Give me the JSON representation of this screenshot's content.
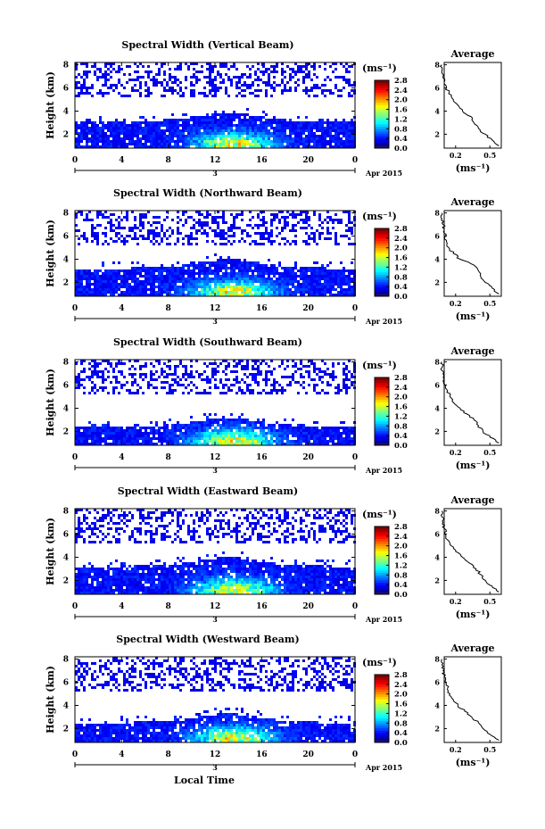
{
  "figure": {
    "time_axis_label": "Local Time",
    "date_label": "Apr 2015",
    "day_label": "3",
    "colorbar_unit": "(ms⁻¹)",
    "average_title": "Average",
    "average_xlabel": "(ms⁻¹)",
    "height_label": "Height (km)"
  },
  "chart_data": [
    {
      "type": "heatmap",
      "title": "Spectral Width (Vertical Beam)",
      "xlabel": "Local Time",
      "ylabel": "Height (km)",
      "x_ticks": [
        "0",
        "4",
        "8",
        "12",
        "16",
        "20",
        "0"
      ],
      "xlim": [
        0,
        24
      ],
      "y_ticks": [
        "2",
        "4",
        "6",
        "8"
      ],
      "ylim": [
        0.8,
        8.2
      ],
      "colorbar": {
        "unit": "(ms⁻¹)",
        "ticks": [
          "0.0",
          "0.4",
          "0.8",
          "1.2",
          "1.6",
          "2.0",
          "2.4",
          "2.8"
        ],
        "range": [
          0.0,
          2.8
        ]
      },
      "profile": {
        "title": "Average",
        "xlabel": "(ms⁻¹)",
        "x_ticks": [
          "0.2",
          "0.5"
        ],
        "y_ticks": [
          "2",
          "4",
          "6",
          "8"
        ],
        "height": [
          1.0,
          1.5,
          2.0,
          2.5,
          3.0,
          3.5,
          4.0,
          4.5,
          5.0,
          5.5,
          6.0,
          6.5,
          7.0,
          7.5,
          8.0
        ],
        "width": [
          0.58,
          0.52,
          0.46,
          0.4,
          0.36,
          0.34,
          0.26,
          0.22,
          0.18,
          0.14,
          0.12,
          0.1,
          0.09,
          0.08,
          0.08
        ]
      },
      "layer_top_km": 3.5
    },
    {
      "type": "heatmap",
      "title": "Spectral Width (Northward Beam)",
      "xlabel": "Local Time",
      "ylabel": "Height (km)",
      "x_ticks": [
        "0",
        "4",
        "8",
        "12",
        "16",
        "20",
        "0"
      ],
      "xlim": [
        0,
        24
      ],
      "y_ticks": [
        "2",
        "4",
        "6",
        "8"
      ],
      "ylim": [
        0.8,
        8.2
      ],
      "colorbar": {
        "unit": "(ms⁻¹)",
        "ticks": [
          "0.0",
          "0.4",
          "0.8",
          "1.2",
          "1.6",
          "2.0",
          "2.4",
          "2.8"
        ],
        "range": [
          0.0,
          2.8
        ]
      },
      "profile": {
        "title": "Average",
        "xlabel": "(ms⁻¹)",
        "x_ticks": [
          "0.2",
          "0.5"
        ],
        "y_ticks": [
          "2",
          "4",
          "6",
          "8"
        ],
        "height": [
          1.0,
          1.5,
          2.0,
          2.5,
          3.0,
          3.5,
          4.0,
          4.5,
          5.0,
          5.5,
          6.0,
          6.5,
          7.0,
          7.5,
          8.0
        ],
        "width": [
          0.58,
          0.52,
          0.46,
          0.42,
          0.4,
          0.36,
          0.24,
          0.18,
          0.14,
          0.12,
          0.11,
          0.1,
          0.09,
          0.08,
          0.08
        ]
      },
      "layer_top_km": 3.6
    },
    {
      "type": "heatmap",
      "title": "Spectral Width (Southward Beam)",
      "xlabel": "Local Time",
      "ylabel": "Height (km)",
      "x_ticks": [
        "0",
        "4",
        "8",
        "12",
        "16",
        "20",
        "0"
      ],
      "xlim": [
        0,
        24
      ],
      "y_ticks": [
        "2",
        "4",
        "6",
        "8"
      ],
      "ylim": [
        0.8,
        8.2
      ],
      "colorbar": {
        "unit": "(ms⁻¹)",
        "ticks": [
          "0.0",
          "0.4",
          "0.8",
          "1.2",
          "1.6",
          "2.0",
          "2.4",
          "2.8"
        ],
        "range": [
          0.0,
          2.8
        ]
      },
      "profile": {
        "title": "Average",
        "xlabel": "(ms⁻¹)",
        "x_ticks": [
          "0.2",
          "0.5"
        ],
        "y_ticks": [
          "2",
          "4",
          "6",
          "8"
        ],
        "height": [
          1.0,
          1.5,
          2.0,
          2.5,
          3.0,
          3.5,
          4.0,
          4.5,
          5.0,
          5.5,
          6.0,
          6.5,
          7.0,
          7.5,
          8.0
        ],
        "width": [
          0.58,
          0.5,
          0.44,
          0.4,
          0.36,
          0.3,
          0.24,
          0.18,
          0.15,
          0.13,
          0.11,
          0.1,
          0.09,
          0.08,
          0.08
        ]
      },
      "layer_top_km": 2.8
    },
    {
      "type": "heatmap",
      "title": "Spectral Width (Eastward Beam)",
      "xlabel": "Local Time",
      "ylabel": "Height (km)",
      "x_ticks": [
        "0",
        "4",
        "8",
        "12",
        "16",
        "20",
        "0"
      ],
      "xlim": [
        0,
        24
      ],
      "y_ticks": [
        "2",
        "4",
        "6",
        "8"
      ],
      "ylim": [
        0.8,
        8.2
      ],
      "colorbar": {
        "unit": "(ms⁻¹)",
        "ticks": [
          "0.0",
          "0.4",
          "0.8",
          "1.2",
          "1.6",
          "2.0",
          "2.4",
          "2.8"
        ],
        "range": [
          0.0,
          2.8
        ]
      },
      "profile": {
        "title": "Average",
        "xlabel": "(ms⁻¹)",
        "x_ticks": [
          "0.2",
          "0.5"
        ],
        "y_ticks": [
          "2",
          "4",
          "6",
          "8"
        ],
        "height": [
          1.0,
          1.5,
          2.0,
          2.5,
          3.0,
          3.5,
          4.0,
          4.5,
          5.0,
          5.5,
          6.0,
          6.5,
          7.0,
          7.5,
          8.0
        ],
        "width": [
          0.58,
          0.52,
          0.46,
          0.42,
          0.38,
          0.32,
          0.26,
          0.2,
          0.16,
          0.13,
          0.11,
          0.1,
          0.09,
          0.08,
          0.08
        ]
      },
      "layer_top_km": 3.6
    },
    {
      "type": "heatmap",
      "title": "Spectral Width (Westward Beam)",
      "xlabel": "Local Time",
      "ylabel": "Height (km)",
      "x_ticks": [
        "0",
        "4",
        "8",
        "12",
        "16",
        "20",
        "0"
      ],
      "xlim": [
        0,
        24
      ],
      "y_ticks": [
        "2",
        "4",
        "6",
        "8"
      ],
      "ylim": [
        0.8,
        8.2
      ],
      "colorbar": {
        "unit": "(ms⁻¹)",
        "ticks": [
          "0.0",
          "0.4",
          "0.8",
          "1.2",
          "1.6",
          "2.0",
          "2.4",
          "2.8"
        ],
        "range": [
          0.0,
          2.8
        ]
      },
      "profile": {
        "title": "Average",
        "xlabel": "(ms⁻¹)",
        "x_ticks": [
          "0.2",
          "0.5"
        ],
        "y_ticks": [
          "2",
          "4",
          "6",
          "8"
        ],
        "height": [
          1.0,
          1.5,
          2.0,
          2.5,
          3.0,
          3.5,
          4.0,
          4.5,
          5.0,
          5.5,
          6.0,
          6.5,
          7.0,
          7.5,
          8.0
        ],
        "width": [
          0.58,
          0.5,
          0.44,
          0.4,
          0.34,
          0.28,
          0.22,
          0.18,
          0.15,
          0.13,
          0.11,
          0.1,
          0.09,
          0.08,
          0.08
        ]
      },
      "layer_top_km": 2.9
    }
  ]
}
